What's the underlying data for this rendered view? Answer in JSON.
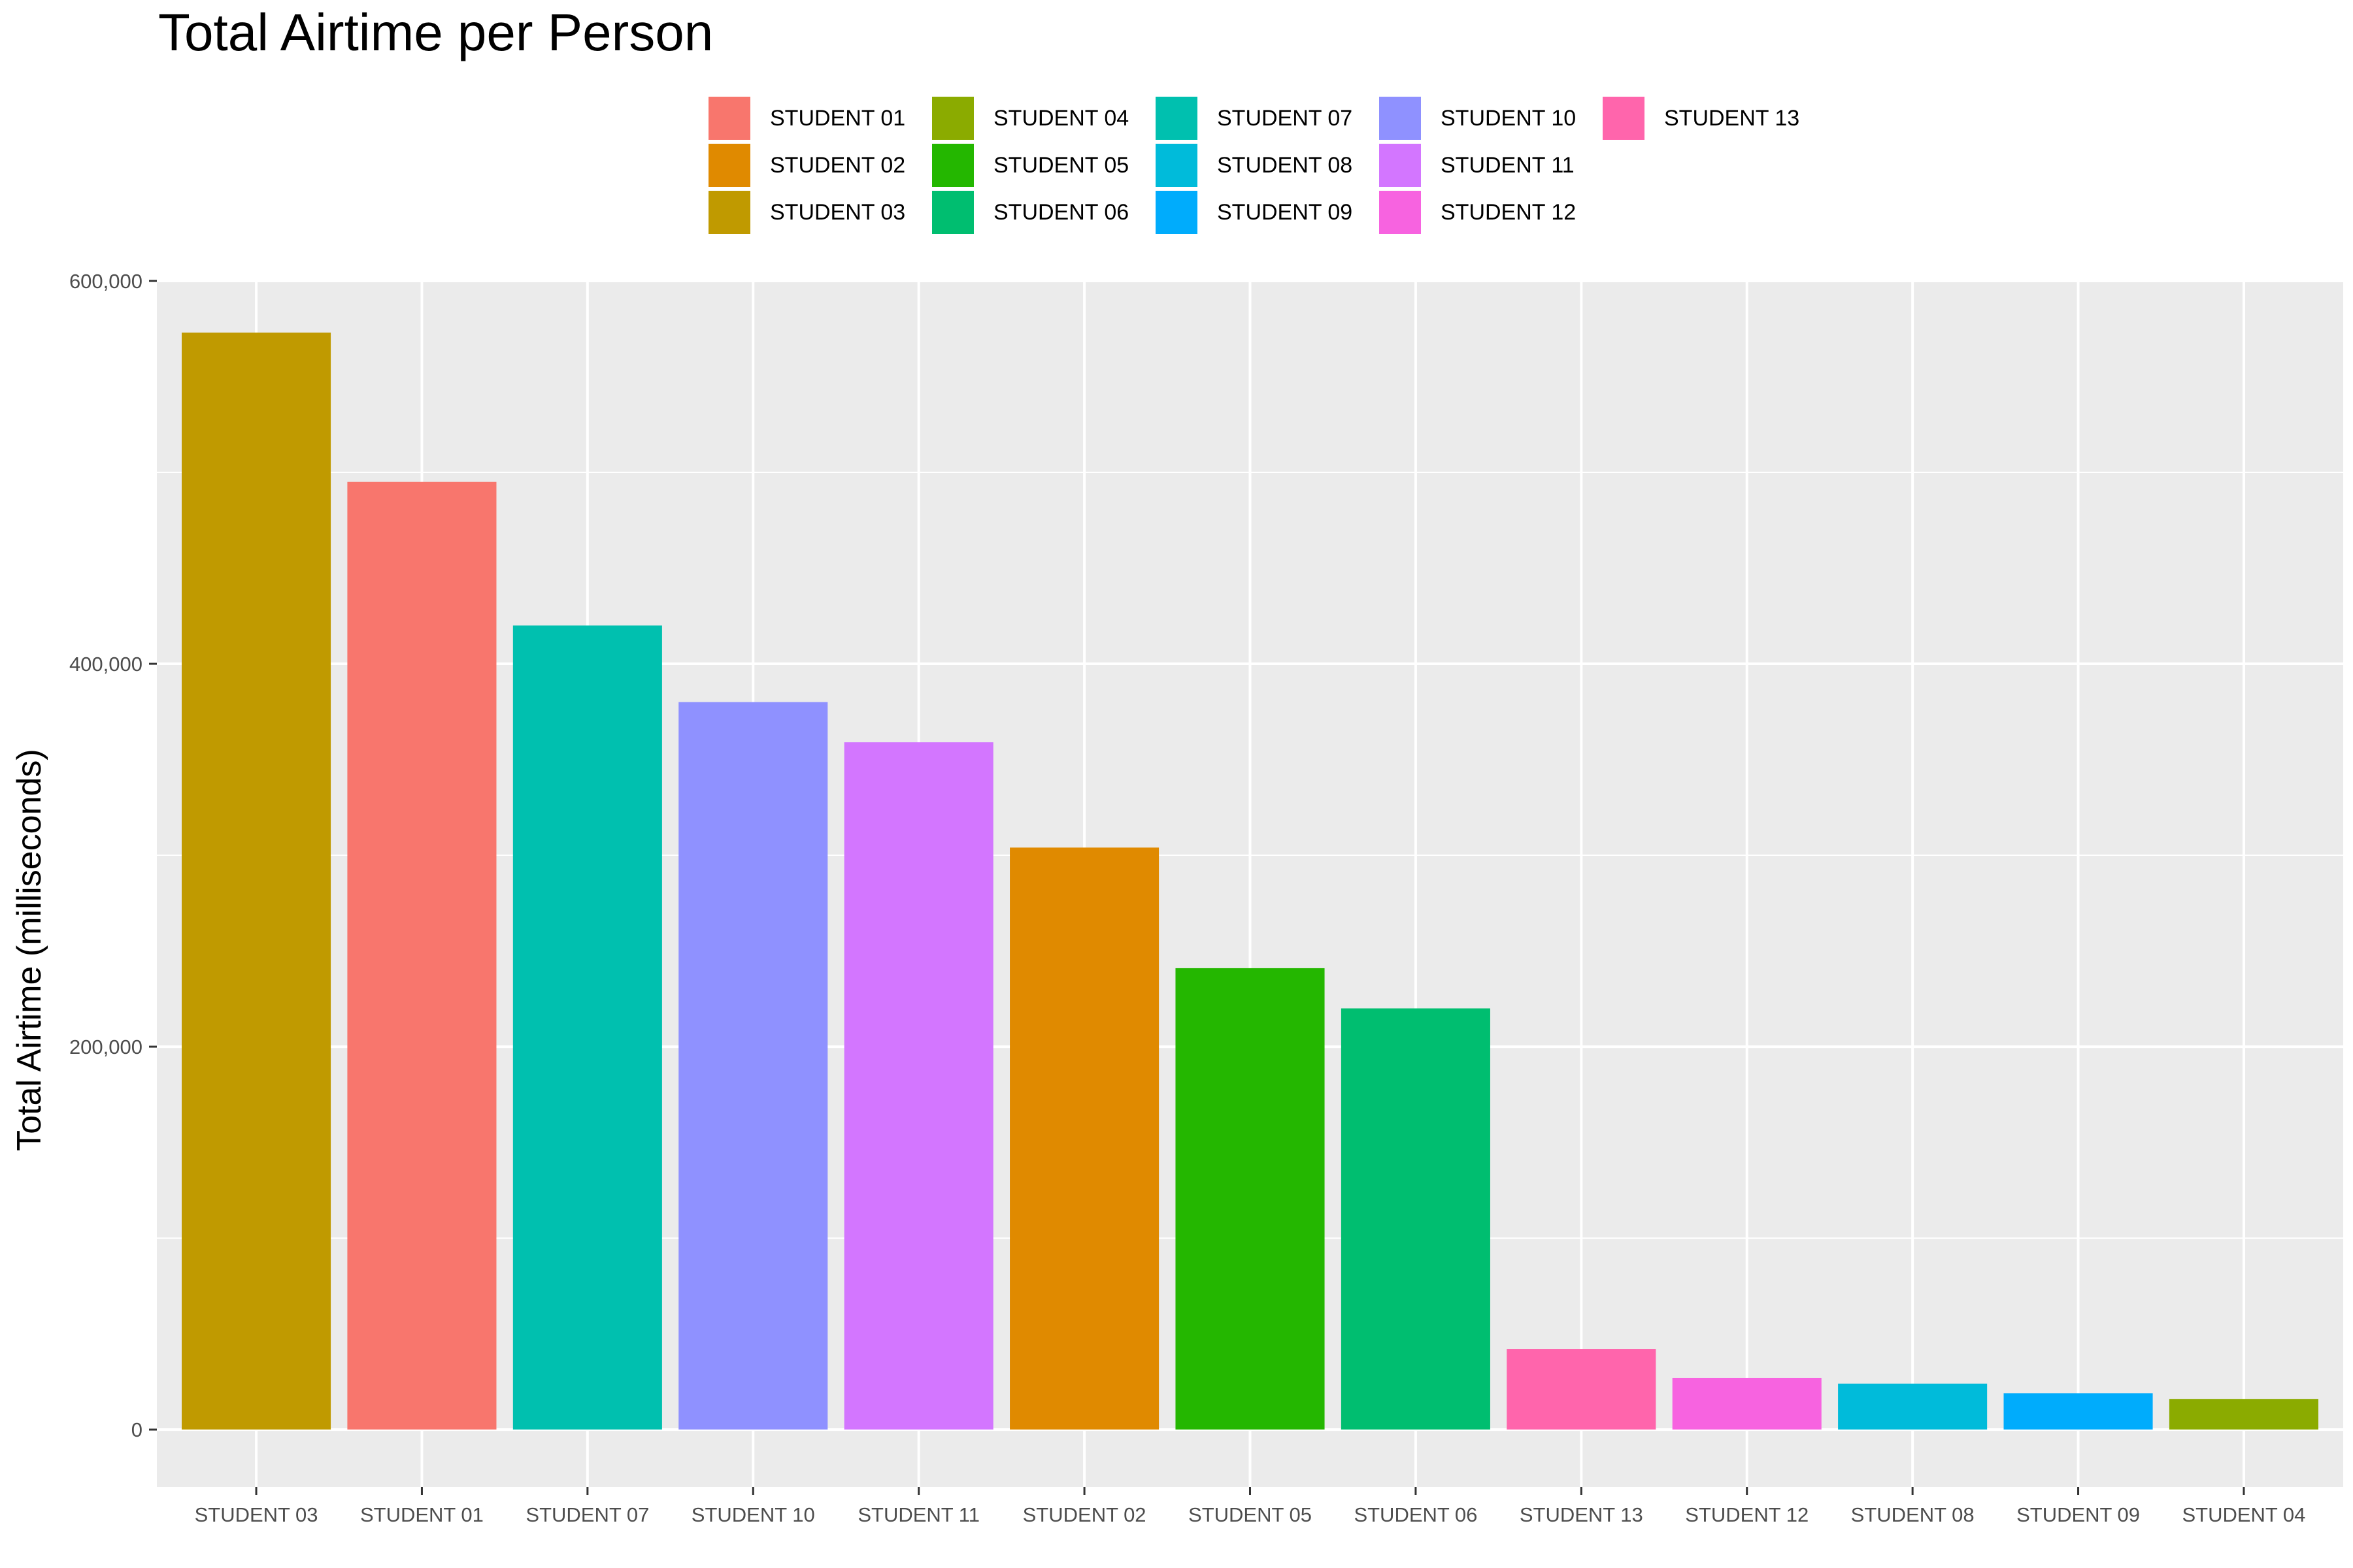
{
  "chart_data": {
    "type": "bar",
    "title": "Total Airtime per Person",
    "xlabel": "",
    "ylabel": "Total Airtime (milliseconds)",
    "ylim": [
      -30000,
      600000
    ],
    "yticks": [
      0,
      200000,
      400000,
      600000
    ],
    "ytick_labels": [
      "0",
      "200,000",
      "400,000",
      "600,000"
    ],
    "grid": true,
    "legend_position": "top",
    "categories": [
      "STUDENT 03",
      "STUDENT 01",
      "STUDENT 07",
      "STUDENT 10",
      "STUDENT 11",
      "STUDENT 02",
      "STUDENT 05",
      "STUDENT 06",
      "STUDENT 13",
      "STUDENT 12",
      "STUDENT 08",
      "STUDENT 09",
      "STUDENT 04"
    ],
    "values": [
      573000,
      495000,
      420000,
      380000,
      359000,
      304000,
      241000,
      220000,
      42000,
      27000,
      24000,
      19000,
      16000
    ],
    "colors": [
      "#C09A00",
      "#F8766D",
      "#00C0AF",
      "#8F91FF",
      "#D376FF",
      "#E08A00",
      "#24B700",
      "#00BE70",
      "#FF65AC",
      "#F763E0",
      "#00BBDA",
      "#00ACFC",
      "#8BAB00"
    ],
    "legend": [
      {
        "label": "STUDENT 01",
        "color": "#F8766D"
      },
      {
        "label": "STUDENT 02",
        "color": "#E08A00"
      },
      {
        "label": "STUDENT 03",
        "color": "#C09A00"
      },
      {
        "label": "STUDENT 04",
        "color": "#8BAB00"
      },
      {
        "label": "STUDENT 05",
        "color": "#24B700"
      },
      {
        "label": "STUDENT 06",
        "color": "#00BE70"
      },
      {
        "label": "STUDENT 07",
        "color": "#00C0AF"
      },
      {
        "label": "STUDENT 08",
        "color": "#00BBDA"
      },
      {
        "label": "STUDENT 09",
        "color": "#00ACFC"
      },
      {
        "label": "STUDENT 10",
        "color": "#8F91FF"
      },
      {
        "label": "STUDENT 11",
        "color": "#D376FF"
      },
      {
        "label": "STUDENT 12",
        "color": "#F763E0"
      },
      {
        "label": "STUDENT 13",
        "color": "#FF65AC"
      }
    ],
    "panel_color": "#EBEBEB",
    "grid_color": "#FFFFFF"
  }
}
